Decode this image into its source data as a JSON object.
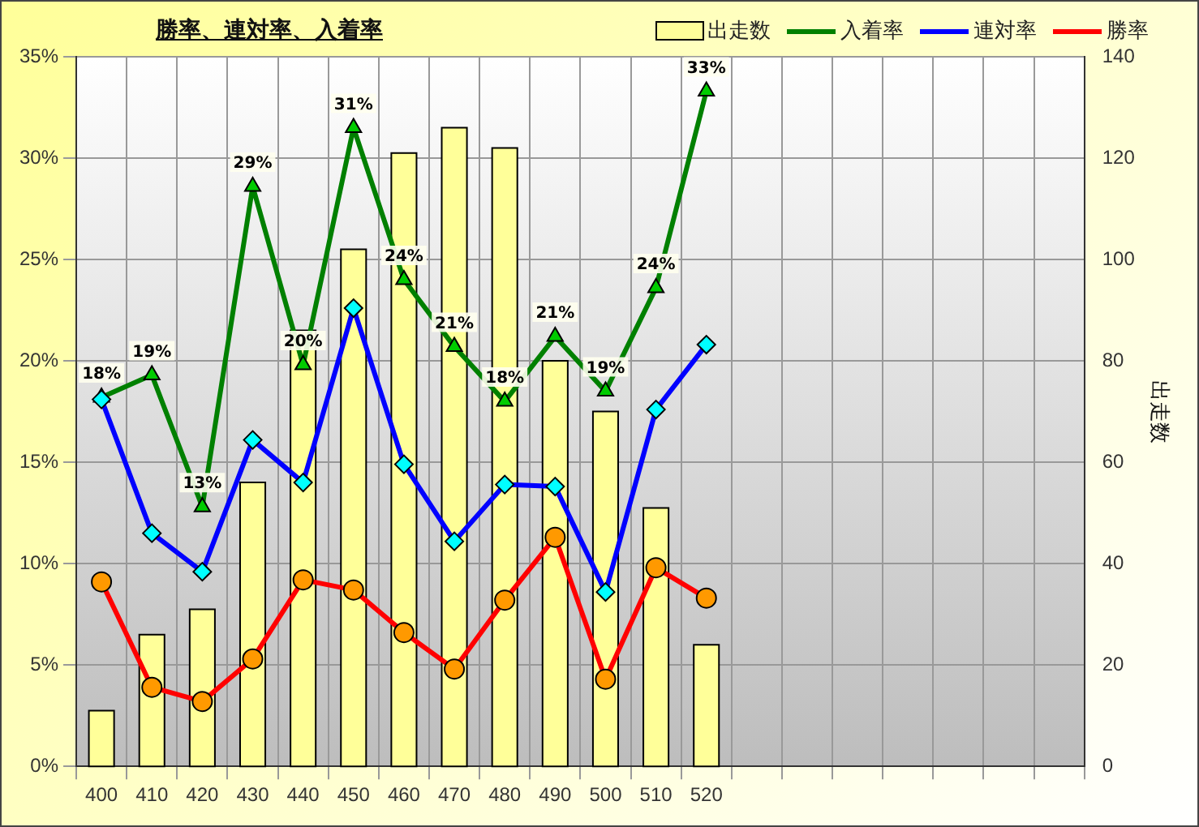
{
  "chart_data": {
    "type": "line",
    "title": "勝率、連対率、入着率",
    "y2label": "出走数",
    "categories": [
      "400",
      "410",
      "420",
      "430",
      "440",
      "450",
      "460",
      "470",
      "480",
      "490",
      "500",
      "510",
      "520",
      null,
      null,
      null,
      null,
      null,
      null,
      null
    ],
    "series": [
      {
        "name": "出走数",
        "type": "bar",
        "axis": "y2",
        "color": "#ffff99",
        "values": [
          11,
          26,
          31,
          56,
          86,
          102,
          121,
          126,
          122,
          80,
          70,
          51,
          24,
          null,
          null,
          null,
          null,
          null,
          null,
          null
        ]
      },
      {
        "name": "入着率",
        "marker": "triangle",
        "color": "#008000",
        "values": [
          18.2,
          19.3,
          12.8,
          28.6,
          19.8,
          31.5,
          24.0,
          20.7,
          18.0,
          21.2,
          18.5,
          23.6,
          33.3,
          null,
          null,
          null,
          null,
          null,
          null,
          null
        ],
        "value_labels": [
          "18%",
          "19%",
          "13%",
          "29%",
          "20%",
          "31%",
          "24%",
          "21%",
          "18%",
          "21%",
          "19%",
          "24%",
          "33%",
          null,
          null,
          null,
          null,
          null,
          null,
          null
        ]
      },
      {
        "name": "連対率",
        "marker": "diamond",
        "color": "#0000ff",
        "values": [
          18.1,
          11.5,
          9.6,
          16.1,
          14.0,
          22.6,
          14.9,
          11.1,
          13.9,
          13.8,
          8.6,
          17.6,
          20.8,
          null,
          null,
          null,
          null,
          null,
          null,
          null
        ]
      },
      {
        "name": "勝率",
        "marker": "circle",
        "color": "#ff0000",
        "values": [
          9.1,
          3.9,
          3.2,
          5.3,
          9.2,
          8.7,
          6.6,
          4.8,
          8.2,
          11.3,
          4.3,
          9.8,
          8.3,
          null,
          null,
          null,
          null,
          null,
          null,
          null
        ]
      }
    ],
    "ylim": [
      0,
      35
    ],
    "yticks": [
      {
        "value": 0,
        "label": "0%"
      },
      {
        "value": 5,
        "label": "5%"
      },
      {
        "value": 10,
        "label": "10%"
      },
      {
        "value": 15,
        "label": "15%"
      },
      {
        "value": 20,
        "label": "20%"
      },
      {
        "value": 25,
        "label": "25%"
      },
      {
        "value": 30,
        "label": "30%"
      },
      {
        "value": 35,
        "label": "35%"
      }
    ],
    "y2lim": [
      0,
      140
    ],
    "y2ticks": [
      0,
      20,
      40,
      60,
      80,
      100,
      120,
      140
    ],
    "grid": true,
    "legend": "top right"
  }
}
